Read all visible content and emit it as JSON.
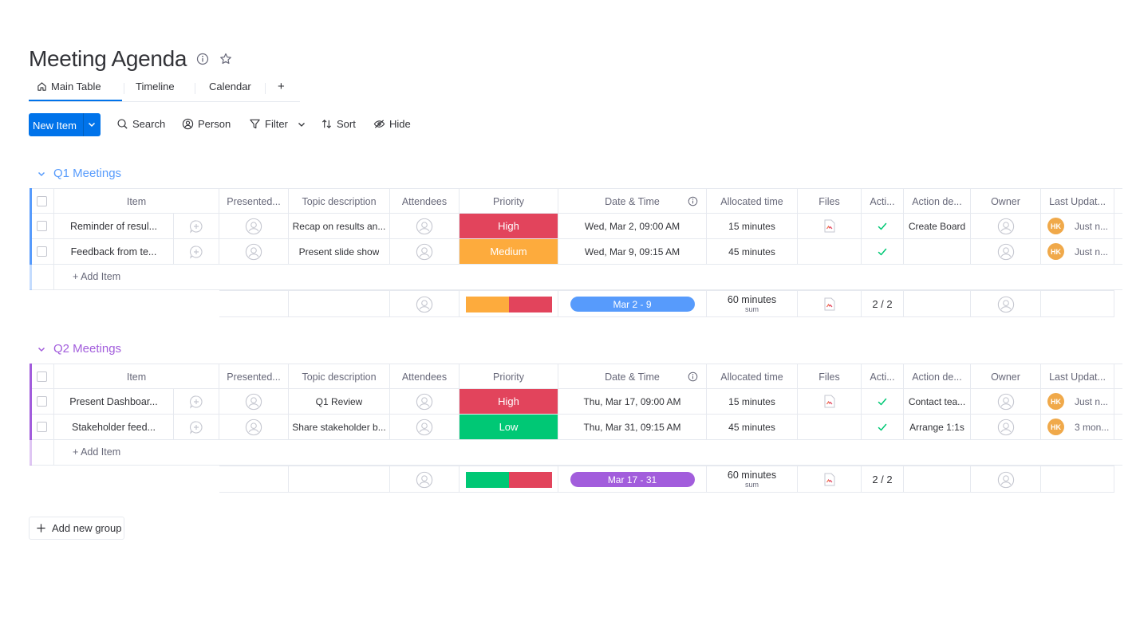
{
  "board": {
    "title": "Meeting Agenda",
    "tabs": [
      "Main Table",
      "Timeline",
      "Calendar",
      "+"
    ]
  },
  "toolbar": {
    "new_item": "New Item",
    "search": "Search",
    "person": "Person",
    "filter": "Filter",
    "sort": "Sort",
    "hide": "Hide"
  },
  "columns": [
    "Item",
    "Presented...",
    "Topic description",
    "Attendees",
    "Priority",
    "Date & Time",
    "Allocated time",
    "Files",
    "Acti...",
    "Action de...",
    "Owner",
    "Last Updat..."
  ],
  "groups": [
    {
      "name": "Q1 Meetings",
      "color": "#579bfc",
      "rows": [
        {
          "item": "Reminder of resul...",
          "topic": "Recap on results an...",
          "priority": "High",
          "priority_color": "#e2445c",
          "date": "Wed, Mar 2, 09:00 AM",
          "allocated": "15 minutes",
          "has_file": true,
          "done": true,
          "action": "Create Board",
          "owner_initials": "HK",
          "updated": "Just n..."
        },
        {
          "item": "Feedback from te...",
          "topic": "Present slide show",
          "priority": "Medium",
          "priority_color": "#fdab3d",
          "date": "Wed, Mar 9, 09:15 AM",
          "allocated": "45 minutes",
          "has_file": false,
          "done": true,
          "action": "",
          "owner_initials": "HK",
          "updated": "Just n..."
        }
      ],
      "add_item": "+ Add Item",
      "summary": {
        "timeline": "Mar 2 - 9",
        "timeline_color": "#579bfc",
        "allocated": "60 minutes",
        "allocated_sub": "sum",
        "actions": "2 / 2",
        "priority_split": [
          {
            "color": "#fdab3d",
            "fraction": 0.5
          },
          {
            "color": "#e2445c",
            "fraction": 0.5
          }
        ]
      }
    },
    {
      "name": "Q2 Meetings",
      "color": "#a25ddc",
      "rows": [
        {
          "item": "Present Dashboar...",
          "topic": "Q1 Review",
          "priority": "High",
          "priority_color": "#e2445c",
          "date": "Thu, Mar 17, 09:00 AM",
          "allocated": "15 minutes",
          "has_file": true,
          "done": true,
          "action": "Contact tea...",
          "owner_initials": "HK",
          "updated": "Just n..."
        },
        {
          "item": "Stakeholder feed...",
          "topic": "Share stakeholder b...",
          "priority": "Low",
          "priority_color": "#00c875",
          "date": "Thu, Mar 31, 09:15 AM",
          "allocated": "45 minutes",
          "has_file": false,
          "done": true,
          "action": "Arrange 1:1s",
          "owner_initials": "HK",
          "updated": "3 mon..."
        }
      ],
      "add_item": "+ Add Item",
      "summary": {
        "timeline": "Mar 17 - 31",
        "timeline_color": "#a25ddc",
        "allocated": "60 minutes",
        "allocated_sub": "sum",
        "actions": "2 / 2",
        "priority_split": [
          {
            "color": "#00c875",
            "fraction": 0.5
          },
          {
            "color": "#e2445c",
            "fraction": 0.5
          }
        ]
      }
    }
  ],
  "add_group": "Add new group",
  "icons": [
    "info-icon",
    "star-icon",
    "home-icon",
    "chevron-down-icon",
    "search-icon",
    "person-icon",
    "filter-icon",
    "sort-icon",
    "hide-icon",
    "add-update-icon",
    "file-icon",
    "check-icon",
    "plus-icon"
  ]
}
